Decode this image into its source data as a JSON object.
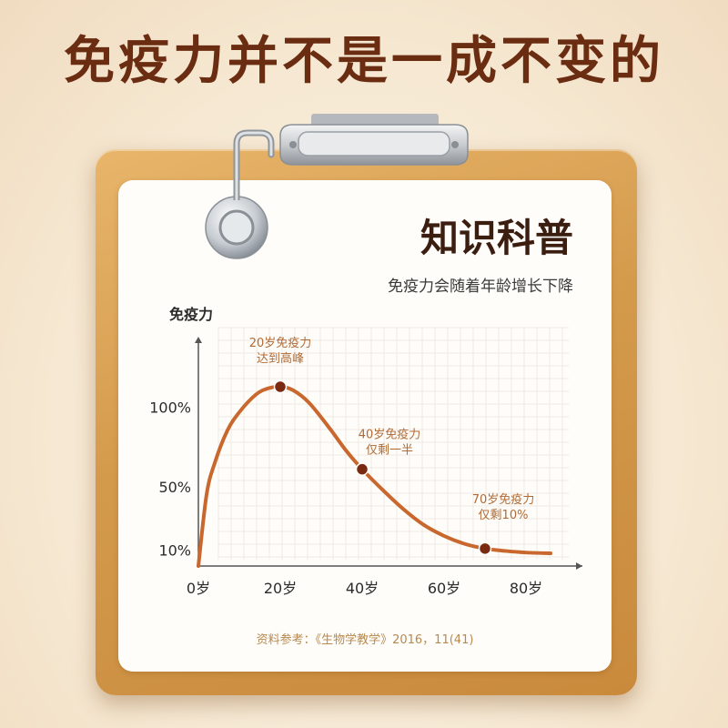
{
  "headline": "免疫力并不是一成不变的",
  "card": {
    "title": "知识科普",
    "subtitle": "免疫力会随着年龄增长下降",
    "source": "资料参考：《生物学教学》2016，11(41)"
  },
  "colors": {
    "curve": "#c8682e",
    "point": "#7a2a10",
    "annotation": "#b06a35",
    "axis": "#555555",
    "board": "#d49a4c",
    "headline": "#6b2d12"
  },
  "chart_data": {
    "type": "line",
    "ylabel": "免疫力",
    "xlabel": "",
    "x_ticks": [
      {
        "value": 0,
        "label": "0岁"
      },
      {
        "value": 20,
        "label": "20岁"
      },
      {
        "value": 40,
        "label": "40岁"
      },
      {
        "value": 60,
        "label": "60岁"
      },
      {
        "value": 80,
        "label": "80岁"
      }
    ],
    "y_ticks": [
      {
        "value": 10,
        "label": "10%"
      },
      {
        "value": 50,
        "label": "50%"
      },
      {
        "value": 100,
        "label": "100%"
      }
    ],
    "xlim": [
      0,
      92
    ],
    "ylim": [
      0,
      140
    ],
    "series": [
      {
        "values_x": [
          0,
          2,
          4,
          7,
          10,
          14,
          17,
          20,
          23,
          27,
          32,
          36,
          40,
          45,
          50,
          55,
          60,
          65,
          70,
          75,
          80,
          86
        ],
        "values_y": [
          0,
          45,
          65,
          85,
          97,
          108,
          112,
          113,
          111,
          103,
          87,
          73,
          61,
          48,
          36,
          26,
          19,
          14,
          11,
          9.5,
          8.5,
          8
        ]
      }
    ],
    "points": [
      {
        "x": 20,
        "y": 113,
        "label_lines": [
          "20岁免疫力",
          "达到高峰"
        ]
      },
      {
        "x": 40,
        "y": 61,
        "label_lines": [
          "40岁免疫力",
          "仅剩一半"
        ]
      },
      {
        "x": 70,
        "y": 11,
        "label_lines": [
          "70岁免疫力",
          "仅剩10%"
        ]
      }
    ],
    "grid": true
  }
}
